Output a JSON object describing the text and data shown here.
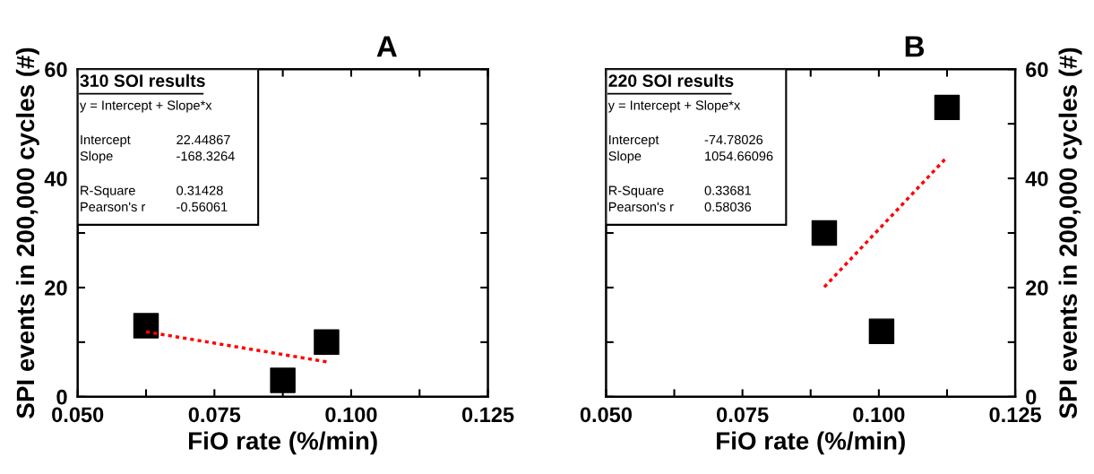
{
  "chart_data": [
    {
      "type": "scatter",
      "title": "A",
      "xlabel": "FiO rate (%/min)",
      "ylabel": "SPI events in 200,000 cycles (#)",
      "xlim": [
        0.05,
        0.125
      ],
      "xticks": [
        {
          "value": 0.05,
          "label": "0.050"
        },
        {
          "value": 0.0625,
          "label": null
        },
        {
          "value": 0.075,
          "label": "0.075"
        },
        {
          "value": 0.0875,
          "label": null
        },
        {
          "value": 0.1,
          "label": "0.100"
        },
        {
          "value": 0.1125,
          "label": null
        },
        {
          "value": 0.125,
          "label": "0.125"
        }
      ],
      "ylim": [
        0,
        60
      ],
      "yticks": [
        0,
        {
          "value": 10,
          "label": null
        },
        20,
        {
          "value": 30,
          "label": null
        },
        40,
        {
          "value": 50,
          "label": null
        },
        60
      ],
      "marker": "square",
      "grid": false,
      "legend": false,
      "series": [
        {
          "color": "#000000",
          "x": [
            0.0625,
            0.0875,
            0.0955
          ],
          "values": [
            13,
            3,
            10
          ]
        },
        {
          "type": "line",
          "color": "#ff0000",
          "line_style": "dotted",
          "marker": "none",
          "x": [
            0.0625,
            0.0955
          ],
          "values": [
            11.9,
            6.4
          ]
        }
      ],
      "annotations": [
        "310 SOI results",
        "y = Intercept + Slope*x",
        "Intercept",
        "22.44867",
        "Slope",
        "-168.3264",
        "R-Square",
        "0.31428",
        "Pearson's r",
        "-0.56061"
      ]
    },
    {
      "type": "scatter",
      "title": "B",
      "xlabel": "FiO rate (%/min)",
      "y2label": "SPI events in 200,000 cycles (#)",
      "xlim": [
        0.05,
        0.125
      ],
      "xticks": [
        {
          "value": 0.05,
          "label": "0.050"
        },
        {
          "value": 0.0625,
          "label": null
        },
        {
          "value": 0.075,
          "label": "0.075"
        },
        {
          "value": 0.0875,
          "label": null
        },
        {
          "value": 0.1,
          "label": "0.100"
        },
        {
          "value": 0.1125,
          "label": null
        },
        {
          "value": 0.125,
          "label": "0.125"
        }
      ],
      "y2lim": [
        0,
        60
      ],
      "y2ticks": [
        0,
        {
          "value": 10,
          "label": null
        },
        20,
        {
          "value": 30,
          "label": null
        },
        40,
        {
          "value": 50,
          "label": null
        },
        60
      ],
      "marker": "square",
      "grid": false,
      "legend": false,
      "series": [
        {
          "axis": "y2",
          "color": "#000000",
          "x": [
            0.09,
            0.1005,
            0.1125
          ],
          "values": [
            30,
            12,
            53
          ]
        },
        {
          "type": "line",
          "axis": "y2",
          "color": "#ff0000",
          "line_style": "dotted",
          "marker": "none",
          "x": [
            0.09,
            0.1125
          ],
          "values": [
            20.1,
            43.9
          ]
        }
      ],
      "annotations": [
        "220 SOI results",
        "y = Intercept + Slope*x",
        "Intercept",
        "-74.78026",
        "Slope",
        "1054.66096",
        "R-Square",
        "0.33681",
        "Pearson's r",
        "0.58036"
      ]
    }
  ]
}
